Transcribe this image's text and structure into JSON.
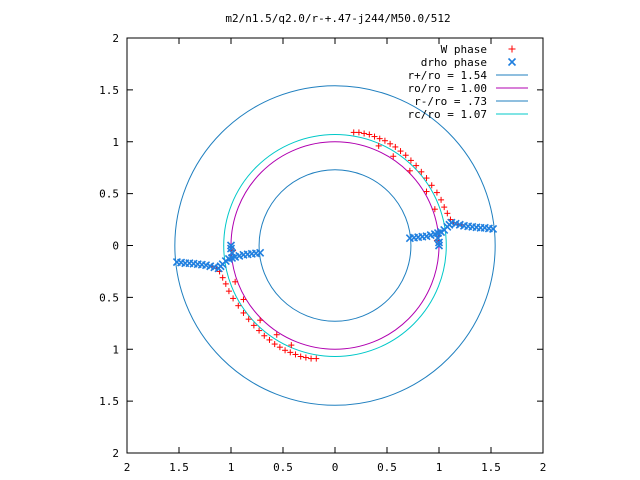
{
  "chart_data": {
    "type": "scatter",
    "title": "m2/n1.5/q2.0/r-+.47-j244/M50.0/512",
    "xlabel": "",
    "ylabel": "",
    "xlim": [
      -2,
      2
    ],
    "ylim": [
      -2,
      2
    ],
    "x_ticks": [
      {
        "value": -2,
        "label": "2"
      },
      {
        "value": -1.5,
        "label": "1.5"
      },
      {
        "value": -1,
        "label": "1"
      },
      {
        "value": -0.5,
        "label": "0.5"
      },
      {
        "value": 0,
        "label": "0"
      },
      {
        "value": 0.5,
        "label": "0.5"
      },
      {
        "value": 1,
        "label": "1"
      },
      {
        "value": 1.5,
        "label": "1.5"
      },
      {
        "value": 2,
        "label": "2"
      }
    ],
    "y_ticks": [
      {
        "value": 2,
        "label": "2"
      },
      {
        "value": 1.5,
        "label": "1.5"
      },
      {
        "value": 1,
        "label": "1"
      },
      {
        "value": 0.5,
        "label": "0.5"
      },
      {
        "value": 0,
        "label": "0"
      },
      {
        "value": -0.5,
        "label": "0.5"
      },
      {
        "value": -1,
        "label": "1"
      },
      {
        "value": -1.5,
        "label": "1.5"
      },
      {
        "value": -2,
        "label": "2"
      }
    ],
    "grid": false,
    "legend_position": "top-right",
    "circles": [
      {
        "name": "r+/ro = 1.54",
        "radius": 1.54,
        "color": "#1f7fbf"
      },
      {
        "name": "ro/ro = 1.00",
        "radius": 1.0,
        "color": "#b000b0"
      },
      {
        "name": "r-/ro = .73",
        "radius": 0.73,
        "color": "#1f7fbf"
      },
      {
        "name": "rc/ro = 1.07",
        "radius": 1.07,
        "color": "#00c8c8"
      }
    ],
    "series": [
      {
        "name": "W phase",
        "marker": "plus",
        "color": "#ff0000",
        "points": [
          [
            0.18,
            1.09
          ],
          [
            0.23,
            1.09
          ],
          [
            0.28,
            1.08
          ],
          [
            0.33,
            1.07
          ],
          [
            0.38,
            1.05
          ],
          [
            0.43,
            1.03
          ],
          [
            0.48,
            1.01
          ],
          [
            0.53,
            0.98
          ],
          [
            0.58,
            0.95
          ],
          [
            0.63,
            0.91
          ],
          [
            0.68,
            0.87
          ],
          [
            0.73,
            0.82
          ],
          [
            0.78,
            0.77
          ],
          [
            0.83,
            0.71
          ],
          [
            0.88,
            0.65
          ],
          [
            0.93,
            0.58
          ],
          [
            0.98,
            0.51
          ],
          [
            1.02,
            0.44
          ],
          [
            1.05,
            0.37
          ],
          [
            1.08,
            0.31
          ],
          [
            1.11,
            0.25
          ],
          [
            1.14,
            0.22
          ],
          [
            1.18,
            0.2
          ],
          [
            1.22,
            0.2
          ],
          [
            0.42,
            0.96
          ],
          [
            0.56,
            0.86
          ],
          [
            0.72,
            0.72
          ],
          [
            0.88,
            0.52
          ],
          [
            0.96,
            0.35
          ],
          [
            1.0,
            0.12
          ],
          [
            0.98,
            0.05
          ],
          [
            -0.18,
            -1.09
          ],
          [
            -0.23,
            -1.09
          ],
          [
            -0.28,
            -1.08
          ],
          [
            -0.33,
            -1.07
          ],
          [
            -0.38,
            -1.05
          ],
          [
            -0.43,
            -1.03
          ],
          [
            -0.48,
            -1.01
          ],
          [
            -0.53,
            -0.98
          ],
          [
            -0.58,
            -0.95
          ],
          [
            -0.63,
            -0.91
          ],
          [
            -0.68,
            -0.87
          ],
          [
            -0.73,
            -0.82
          ],
          [
            -0.78,
            -0.77
          ],
          [
            -0.83,
            -0.71
          ],
          [
            -0.88,
            -0.65
          ],
          [
            -0.93,
            -0.58
          ],
          [
            -0.98,
            -0.51
          ],
          [
            -1.02,
            -0.44
          ],
          [
            -1.05,
            -0.37
          ],
          [
            -1.08,
            -0.31
          ],
          [
            -1.11,
            -0.25
          ],
          [
            -1.14,
            -0.22
          ],
          [
            -1.18,
            -0.2
          ],
          [
            -0.42,
            -0.96
          ],
          [
            -0.56,
            -0.86
          ],
          [
            -0.72,
            -0.72
          ],
          [
            -0.88,
            -0.52
          ],
          [
            -0.96,
            -0.35
          ],
          [
            -1.0,
            -0.12
          ],
          [
            -0.98,
            -0.05
          ]
        ]
      },
      {
        "name": "drho phase",
        "marker": "cross",
        "color": "#1f7fdf",
        "points": [
          [
            0.72,
            0.07
          ],
          [
            0.76,
            0.075
          ],
          [
            0.8,
            0.08
          ],
          [
            0.84,
            0.085
          ],
          [
            0.88,
            0.09
          ],
          [
            0.92,
            0.1
          ],
          [
            0.96,
            0.11
          ],
          [
            0.99,
            0.12
          ],
          [
            1.02,
            0.13
          ],
          [
            1.05,
            0.15
          ],
          [
            1.08,
            0.18
          ],
          [
            1.1,
            0.2
          ],
          [
            1.12,
            0.22
          ],
          [
            1.16,
            0.21
          ],
          [
            1.2,
            0.2
          ],
          [
            1.24,
            0.19
          ],
          [
            1.28,
            0.185
          ],
          [
            1.32,
            0.18
          ],
          [
            1.36,
            0.175
          ],
          [
            1.4,
            0.17
          ],
          [
            1.44,
            0.17
          ],
          [
            1.48,
            0.165
          ],
          [
            1.52,
            0.16
          ],
          [
            -0.72,
            -0.07
          ],
          [
            -0.76,
            -0.075
          ],
          [
            -0.8,
            -0.08
          ],
          [
            -0.84,
            -0.085
          ],
          [
            -0.88,
            -0.09
          ],
          [
            -0.92,
            -0.1
          ],
          [
            -0.96,
            -0.11
          ],
          [
            -0.99,
            -0.12
          ],
          [
            -1.02,
            -0.13
          ],
          [
            -1.05,
            -0.15
          ],
          [
            -1.08,
            -0.18
          ],
          [
            -1.1,
            -0.2
          ],
          [
            -1.12,
            -0.22
          ],
          [
            -1.16,
            -0.21
          ],
          [
            -1.2,
            -0.2
          ],
          [
            -1.24,
            -0.19
          ],
          [
            -1.28,
            -0.185
          ],
          [
            -1.32,
            -0.18
          ],
          [
            -1.36,
            -0.175
          ],
          [
            -1.4,
            -0.17
          ],
          [
            -1.44,
            -0.17
          ],
          [
            -1.48,
            -0.165
          ],
          [
            -1.52,
            -0.16
          ],
          [
            1.0,
            0.03
          ],
          [
            1.0,
            0.0
          ],
          [
            -1.0,
            -0.03
          ],
          [
            -1.0,
            0.0
          ],
          [
            0.99,
            0.07
          ],
          [
            -0.99,
            -0.07
          ]
        ]
      }
    ]
  }
}
